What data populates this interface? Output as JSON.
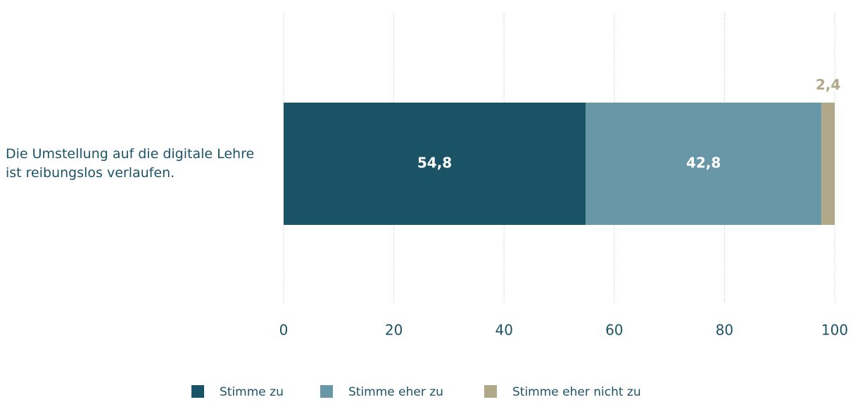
{
  "chart_data": {
    "type": "stacked_barh",
    "categories": [
      "Die Umstellung auf die digitale Lehre ist reibungslos verlaufen."
    ],
    "series": [
      {
        "name": "Stimme zu",
        "color": "#1b5366",
        "values": [
          54.8
        ],
        "value_labels": [
          "54,8"
        ]
      },
      {
        "name": "Stimme eher zu",
        "color": "#6898a8",
        "values": [
          42.8
        ],
        "value_labels": [
          "42,8"
        ]
      },
      {
        "name": "Stimme eher nicht zu",
        "color": "#b0a888",
        "values": [
          2.4
        ],
        "value_labels": [
          "2,4"
        ]
      }
    ],
    "xlim": [
      0,
      100
    ],
    "xticks": [
      0,
      20,
      40,
      60,
      80,
      100
    ],
    "grid": true,
    "legend": "bottom"
  }
}
